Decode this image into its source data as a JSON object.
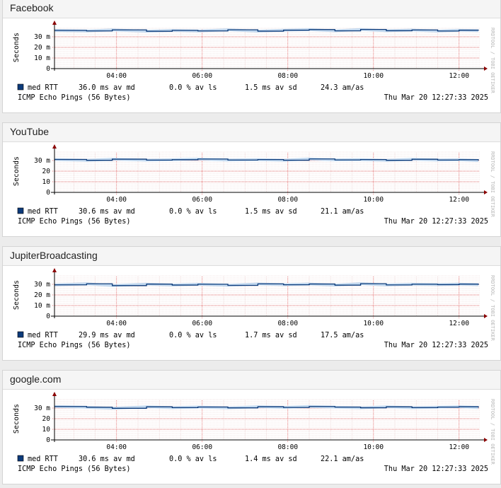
{
  "panels": [
    {
      "title": "Facebook",
      "chart_data": {
        "type": "line",
        "ylabel": "Seconds",
        "watermark": "RRDTOOL / TOBI OETIKER",
        "x_ticks": [
          "04:00",
          "06:00",
          "08:00",
          "10:00",
          "12:00"
        ],
        "y_ticks": [
          "0",
          "10 m",
          "20 m",
          "30 m"
        ],
        "ylim": [
          0,
          40
        ],
        "xlim_hours": [
          2.55,
          12.45
        ],
        "series": [
          {
            "name": "med RTT",
            "color": "#0b3a7a",
            "x": [
              2.55,
              3.3,
              3.9,
              4.7,
              5.3,
              5.9,
              6.6,
              7.3,
              7.9,
              8.5,
              9.1,
              9.7,
              10.3,
              10.9,
              11.5,
              12.0,
              12.45
            ],
            "values": [
              36,
              35.5,
              36.5,
              35.2,
              36,
              35.5,
              36.6,
              35.3,
              36.2,
              36.8,
              35.6,
              36.9,
              35.7,
              36.4,
              35.4,
              36.2,
              35.8
            ]
          }
        ],
        "legend": [
          {
            "label": "med RTT",
            "value": "36.0 ms av md"
          },
          {
            "label": "",
            "value": "0.0 % av ls"
          },
          {
            "label": "",
            "value": "1.5 ms av sd"
          },
          {
            "label": "",
            "value": "24.3   am/as"
          }
        ],
        "footer_left": "ICMP Echo Pings (56 Bytes)",
        "footer_right": "Thu Mar 20 12:27:33 2025"
      }
    },
    {
      "title": "YouTube",
      "chart_data": {
        "type": "line",
        "ylabel": "Seconds",
        "watermark": "RRDTOOL / TOBI OETIKER",
        "x_ticks": [
          "04:00",
          "06:00",
          "08:00",
          "10:00",
          "12:00"
        ],
        "y_ticks": [
          "0",
          "10",
          "20",
          "30 m"
        ],
        "ylim": [
          0,
          40
        ],
        "xlim_hours": [
          2.55,
          12.45
        ],
        "series": [
          {
            "name": "med RTT",
            "color": "#0b3a7a",
            "x": [
              2.55,
              3.3,
              3.9,
              4.7,
              5.3,
              5.9,
              6.6,
              7.3,
              7.9,
              8.5,
              9.1,
              9.7,
              10.3,
              10.9,
              11.5,
              12.0,
              12.45
            ],
            "values": [
              31,
              30.2,
              31.3,
              30.4,
              30.8,
              31.4,
              30.5,
              30.9,
              30.3,
              31.5,
              30.6,
              30.9,
              30.2,
              31.2,
              30.5,
              30.8,
              30.0
            ]
          }
        ],
        "legend": [
          {
            "label": "med RTT",
            "value": "30.6 ms av md"
          },
          {
            "label": "",
            "value": "0.0 % av ls"
          },
          {
            "label": "",
            "value": "1.5 ms av sd"
          },
          {
            "label": "",
            "value": "21.1   am/as"
          }
        ],
        "footer_left": "ICMP Echo Pings (56 Bytes)",
        "footer_right": "Thu Mar 20 12:27:33 2025"
      }
    },
    {
      "title": "JupiterBroadcasting",
      "chart_data": {
        "type": "line",
        "ylabel": "Seconds",
        "watermark": "RRDTOOL / TOBI OETIKER",
        "x_ticks": [
          "04:00",
          "06:00",
          "08:00",
          "10:00",
          "12:00"
        ],
        "y_ticks": [
          "0",
          "10 m",
          "20 m",
          "30 m"
        ],
        "ylim": [
          0,
          40
        ],
        "xlim_hours": [
          2.55,
          12.45
        ],
        "series": [
          {
            "name": "med RTT",
            "color": "#0b3a7a",
            "x": [
              2.55,
              3.3,
              3.9,
              4.7,
              5.3,
              5.9,
              6.6,
              7.3,
              7.9,
              8.5,
              9.1,
              9.7,
              10.3,
              10.9,
              11.5,
              12.0,
              12.45
            ],
            "values": [
              29.5,
              30.5,
              28.8,
              30.2,
              29.3,
              30.1,
              29.0,
              30.4,
              29.6,
              30.3,
              29.2,
              30.6,
              29.4,
              30.1,
              29.7,
              30.2,
              29.6
            ]
          }
        ],
        "legend": [
          {
            "label": "med RTT",
            "value": "29.9 ms av md"
          },
          {
            "label": "",
            "value": "0.0 % av ls"
          },
          {
            "label": "",
            "value": "1.7 ms av sd"
          },
          {
            "label": "",
            "value": "17.5   am/as"
          }
        ],
        "footer_left": "ICMP Echo Pings (56 Bytes)",
        "footer_right": "Thu Mar 20 12:27:33 2025"
      }
    },
    {
      "title": "google.com",
      "chart_data": {
        "type": "line",
        "ylabel": "Seconds",
        "watermark": "RRDTOOL / TOBI OETIKER",
        "x_ticks": [
          "04:00",
          "06:00",
          "08:00",
          "10:00",
          "12:00"
        ],
        "y_ticks": [
          "0",
          "10",
          "20",
          "30 m"
        ],
        "ylim": [
          0,
          40
        ],
        "xlim_hours": [
          2.55,
          12.45
        ],
        "series": [
          {
            "name": "med RTT",
            "color": "#0b3a7a",
            "x": [
              2.55,
              3.3,
              3.9,
              4.7,
              5.3,
              5.9,
              6.6,
              7.3,
              7.9,
              8.5,
              9.1,
              9.7,
              10.3,
              10.9,
              11.5,
              12.0,
              12.45
            ],
            "values": [
              31.5,
              30.8,
              29.8,
              31.2,
              30.4,
              31.0,
              30.2,
              31.3,
              30.6,
              31.5,
              30.9,
              30.3,
              31.2,
              30.4,
              30.9,
              31.3,
              30.5
            ]
          }
        ],
        "legend": [
          {
            "label": "med RTT",
            "value": "30.6 ms av md"
          },
          {
            "label": "",
            "value": "0.0 % av ls"
          },
          {
            "label": "",
            "value": "1.4 ms av sd"
          },
          {
            "label": "",
            "value": "22.1   am/as"
          }
        ],
        "footer_left": "ICMP Echo Pings (56 Bytes)",
        "footer_right": "Thu Mar 20 12:27:33 2025"
      }
    }
  ]
}
